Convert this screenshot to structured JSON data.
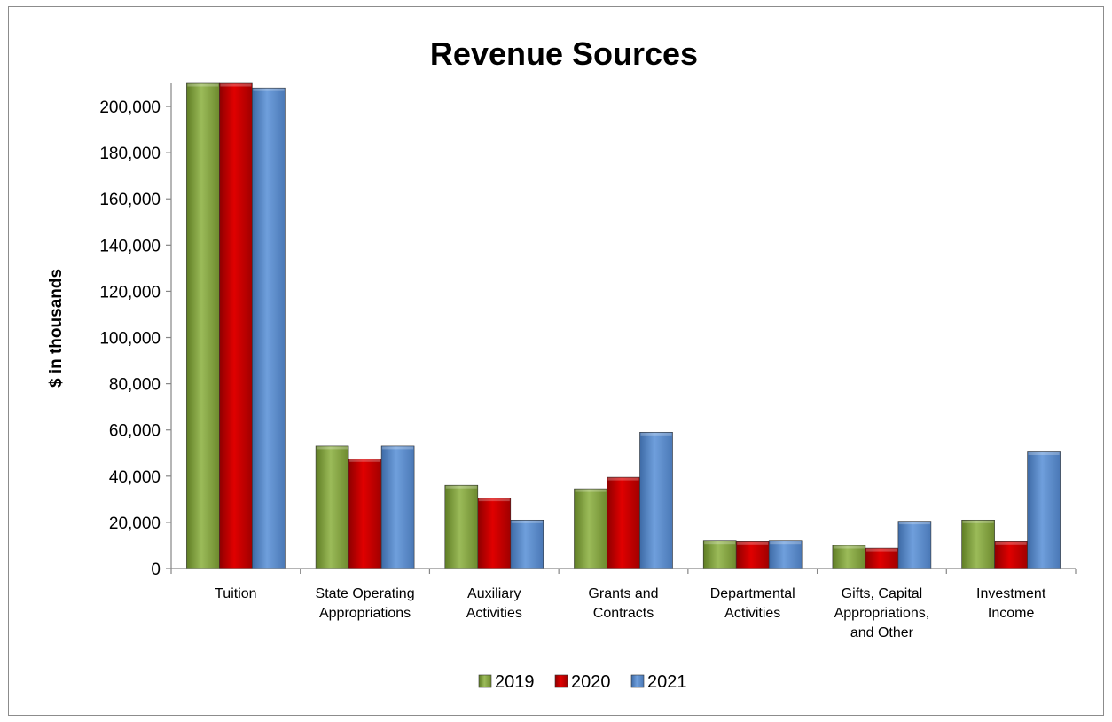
{
  "chart_data": {
    "type": "bar",
    "title": "Revenue Sources",
    "xlabel": "",
    "ylabel": "$ in thousands",
    "ylim": [
      0,
      210000
    ],
    "yticks": [
      0,
      20000,
      40000,
      60000,
      80000,
      100000,
      120000,
      140000,
      160000,
      180000,
      200000
    ],
    "ytick_labels": [
      "0",
      "20,000",
      "40,000",
      "60,000",
      "80,000",
      "100,000",
      "120,000",
      "140,000",
      "160,000",
      "180,000",
      "200,000"
    ],
    "categories": [
      [
        "Tuition"
      ],
      [
        "State Operating",
        "Appropriations"
      ],
      [
        "Auxiliary",
        "Activities"
      ],
      [
        "Grants and",
        "Contracts"
      ],
      [
        "Departmental",
        "Activities"
      ],
      [
        "Gifts, Capital",
        "Appropriations,",
        "and Other"
      ],
      [
        "Investment",
        "Income"
      ]
    ],
    "series": [
      {
        "name": "2019",
        "color": "#7a9a3a",
        "values": [
          210000,
          53000,
          36000,
          34500,
          12000,
          10000,
          21000
        ]
      },
      {
        "name": "2020",
        "color": "#c00000",
        "values": [
          210000,
          47500,
          30500,
          39500,
          11800,
          8800,
          11800
        ]
      },
      {
        "name": "2021",
        "color": "#4f81bd",
        "values": [
          208000,
          53000,
          21000,
          59000,
          12000,
          20500,
          50500
        ]
      }
    ],
    "grid": false,
    "legend_position": "bottom"
  }
}
